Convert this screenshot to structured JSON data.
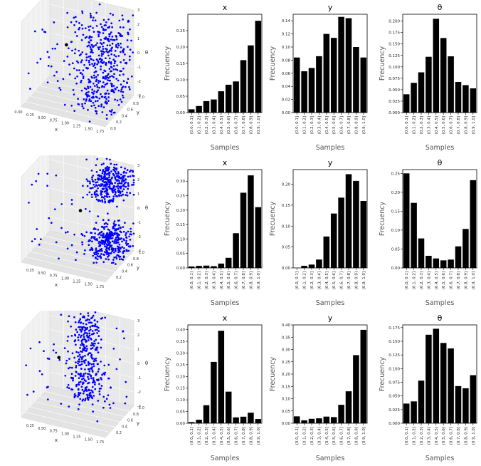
{
  "sample_labels": [
    "(0.0, 0.1]",
    "(0.1, 0.2]",
    "(0.2, 0.3]",
    "(0.3, 0.4]",
    "(0.4, 0.5]",
    "(0.5, 0.6]",
    "(0.6, 0.7]",
    "(0.7, 0.8]",
    "(0.8, 0.9]",
    "(0.9, 1.0]"
  ],
  "colors": {
    "bar": "#000000",
    "scatter_point": "#0000ff",
    "marker_point": "#000000",
    "pane": "#ececec"
  },
  "chart_data": [
    {
      "type": "scatter",
      "projection": "3d",
      "row": 0,
      "x_ticks": [
        "0.00",
        "0.25",
        "0.50",
        "0.75",
        "1.00",
        "1.25",
        "1.50",
        "1.75"
      ],
      "y_ticks": [
        "0.0",
        "0.2",
        "0.4",
        "0.6",
        "0.8",
        "1.0"
      ],
      "z_ticks": [
        "-3",
        "-2",
        "-1",
        "0",
        "1",
        "2",
        "3"
      ],
      "xlabel": "x",
      "ylabel": "y",
      "zlabel": "θ",
      "xlim": [
        0,
        1.8
      ],
      "ylim": [
        0,
        1.0
      ],
      "zlim": [
        -3,
        3
      ],
      "cluster": "spread toward x=1.0–1.8, all θ",
      "highlight_point": {
        "x": 0.6,
        "y": 0.6,
        "z": 0.5
      }
    },
    {
      "type": "bar",
      "row": 0,
      "title": "x",
      "xlabel": "Samples",
      "ylabel": "Frecuency",
      "values": [
        0.01,
        0.02,
        0.035,
        0.04,
        0.065,
        0.085,
        0.095,
        0.16,
        0.205,
        0.28
      ],
      "ylim": [
        0,
        0.3
      ],
      "y_ticks": [
        "0.00",
        "0.05",
        "0.10",
        "0.15",
        "0.20",
        "0.25"
      ]
    },
    {
      "type": "bar",
      "row": 0,
      "title": "y",
      "xlabel": "Samples",
      "ylabel": "Frecuency",
      "values": [
        0.084,
        0.063,
        0.068,
        0.086,
        0.12,
        0.114,
        0.146,
        0.144,
        0.1,
        0.084
      ],
      "ylim": [
        0,
        0.15
      ],
      "y_ticks": [
        "0.00",
        "0.02",
        "0.04",
        "0.06",
        "0.08",
        "0.10",
        "0.12",
        "0.14"
      ]
    },
    {
      "type": "bar",
      "row": 0,
      "title": "θ",
      "xlabel": "Samples",
      "ylabel": "Frecuency",
      "values": [
        0.04,
        0.065,
        0.088,
        0.122,
        0.205,
        0.163,
        0.123,
        0.067,
        0.06,
        0.053
      ],
      "ylim": [
        0,
        0.215
      ],
      "y_ticks": [
        "0.000",
        "0.025",
        "0.050",
        "0.075",
        "0.100",
        "0.125",
        "0.150",
        "0.175",
        "0.200"
      ]
    },
    {
      "type": "scatter",
      "projection": "3d",
      "row": 1,
      "x_ticks": [
        "0.25",
        "0.50",
        "0.75",
        "1.00",
        "1.25",
        "1.50",
        "1.75"
      ],
      "y_ticks": [
        "0.2",
        "0.4",
        "0.6",
        "0.8",
        "1.0"
      ],
      "z_ticks": [
        "-3",
        "-2",
        "-1",
        "0",
        "1",
        "2",
        "3"
      ],
      "xlabel": "x",
      "ylabel": "y",
      "zlabel": "θ",
      "xlim": [
        0,
        1.8
      ],
      "ylim": [
        0,
        1.0
      ],
      "zlim": [
        -3,
        3
      ],
      "cluster": "two clusters at θ≈+2 and θ≈-2",
      "highlight_point": {
        "x": 0.9,
        "y": 0.6,
        "z": 0
      }
    },
    {
      "type": "bar",
      "row": 1,
      "title": "x",
      "xlabel": "Samples",
      "ylabel": "Frecuency",
      "values": [
        0.005,
        0.007,
        0.008,
        0.006,
        0.015,
        0.035,
        0.12,
        0.26,
        0.32,
        0.21
      ],
      "ylim": [
        0,
        0.34
      ],
      "y_ticks": [
        "0.00",
        "0.05",
        "0.10",
        "0.15",
        "0.20",
        "0.25",
        "0.30"
      ]
    },
    {
      "type": "bar",
      "row": 1,
      "title": "y",
      "xlabel": "Samples",
      "ylabel": "Frecuency",
      "values": [
        0.0,
        0.005,
        0.008,
        0.02,
        0.075,
        0.13,
        0.168,
        0.224,
        0.208,
        0.16
      ],
      "ylim": [
        0,
        0.235
      ],
      "y_ticks": [
        "0.00",
        "0.05",
        "0.10",
        "0.15",
        "0.20"
      ]
    },
    {
      "type": "bar",
      "row": 1,
      "title": "θ",
      "xlabel": "Samples",
      "ylabel": "Frecuency",
      "values": [
        0.25,
        0.172,
        0.078,
        0.032,
        0.025,
        0.02,
        0.022,
        0.057,
        0.103,
        0.232
      ],
      "ylim": [
        0,
        0.26
      ],
      "y_ticks": [
        "0.00",
        "0.05",
        "0.10",
        "0.15",
        "0.20",
        "0.25"
      ]
    },
    {
      "type": "scatter",
      "projection": "3d",
      "row": 2,
      "x_ticks": [
        "0.25",
        "0.50",
        "0.75",
        "1.00",
        "1.25",
        "1.50",
        "1.75"
      ],
      "y_ticks": [
        "0.2",
        "0.4",
        "0.6",
        "0.8",
        "1.0"
      ],
      "z_ticks": [
        "-3",
        "-2",
        "-1",
        "0",
        "1",
        "2",
        "3"
      ],
      "xlabel": "x",
      "ylabel": "y",
      "zlabel": "θ",
      "xlim": [
        0,
        1.8
      ],
      "ylim": [
        0,
        1.0
      ],
      "zlim": [
        -3,
        3
      ],
      "cluster": "narrow column near x≈0.9–1.0, all θ",
      "highlight_point": {
        "x": 0.5,
        "y": 0.5,
        "z": 0.5
      }
    },
    {
      "type": "bar",
      "row": 2,
      "title": "x",
      "xlabel": "Samples",
      "ylabel": "Frecuency",
      "values": [
        0.005,
        0.015,
        0.077,
        0.262,
        0.395,
        0.135,
        0.025,
        0.028,
        0.045,
        0.018
      ],
      "ylim": [
        0,
        0.42
      ],
      "y_ticks": [
        "0.00",
        "0.05",
        "0.10",
        "0.15",
        "0.20",
        "0.25",
        "0.30",
        "0.35",
        "0.40"
      ]
    },
    {
      "type": "bar",
      "row": 2,
      "title": "y",
      "xlabel": "Samples",
      "ylabel": "Frecuency",
      "values": [
        0.028,
        0.012,
        0.018,
        0.02,
        0.027,
        0.025,
        0.075,
        0.13,
        0.277,
        0.38
      ],
      "ylim": [
        0,
        0.4
      ],
      "y_ticks": [
        "0.00",
        "0.05",
        "0.10",
        "0.15",
        "0.20",
        "0.25",
        "0.30",
        "0.35",
        "0.40"
      ]
    },
    {
      "type": "bar",
      "row": 2,
      "title": "θ",
      "xlabel": "Samples",
      "ylabel": "Frecuency",
      "values": [
        0.036,
        0.04,
        0.078,
        0.162,
        0.173,
        0.147,
        0.137,
        0.068,
        0.064,
        0.088
      ],
      "ylim": [
        0,
        0.18
      ],
      "y_ticks": [
        "0.000",
        "0.025",
        "0.050",
        "0.075",
        "0.100",
        "0.125",
        "0.150",
        "0.175"
      ]
    }
  ]
}
